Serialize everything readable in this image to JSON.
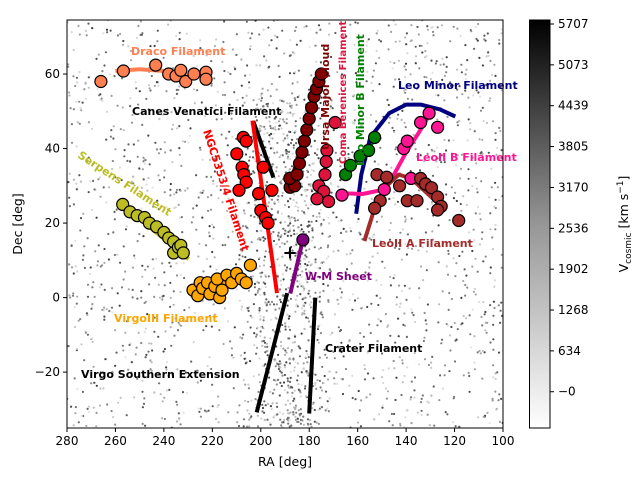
{
  "chart_data": {
    "type": "scatter",
    "xlabel": "RA [deg]",
    "ylabel": "Dec [deg]",
    "xlim": [
      280,
      100
    ],
    "ylim": [
      -35,
      74.5
    ],
    "xticks": [
      280,
      260,
      240,
      220,
      200,
      180,
      160,
      140,
      120,
      100
    ],
    "yticks": [
      -20,
      0,
      20,
      40,
      60
    ],
    "grid": false,
    "colorbar": {
      "label_main": "V",
      "label_sub": "cosmic",
      "label_unit": "[km s",
      "label_exp": "−1",
      "label_close": "]",
      "range": [
        -563,
        5769
      ],
      "ticks": [
        "5707",
        "5073",
        "4439",
        "3805",
        "3170",
        "2536",
        "1902",
        "1268",
        "634",
        "−0"
      ],
      "tick_values": [
        5707,
        5073,
        4439,
        3805,
        3170,
        2536,
        1902,
        1268,
        634,
        0
      ],
      "colormap": "Greys"
    },
    "marker": {
      "label": "+",
      "ra": 187.9,
      "dec": 12.0
    },
    "filaments": [
      {
        "name": "Draco Filament",
        "color": "#ff7f50",
        "line": [
          [
            260,
            60.8
          ],
          [
            250,
            61.3
          ],
          [
            240,
            60.8
          ],
          [
            233,
            59.8
          ],
          [
            228,
            59
          ]
        ],
        "members": [
          [
            266,
            58
          ],
          [
            256.7,
            60.8
          ],
          [
            243.4,
            62.4
          ],
          [
            238,
            60
          ],
          [
            235,
            59.5
          ],
          [
            233,
            61
          ],
          [
            231,
            58
          ],
          [
            227.6,
            60
          ],
          [
            222.6,
            60.5
          ],
          [
            222.6,
            58.6
          ]
        ]
      },
      {
        "name": "Canes Venatici Filament",
        "color": "#000000",
        "line": [
          [
            203.1,
            47.3
          ],
          [
            194.8,
            32.2
          ]
        ],
        "members": []
      },
      {
        "name": "Serpens Filament",
        "color": "#bcbd22",
        "line": [
          [
            257.3,
            25
          ],
          [
            229.8,
            10.3
          ]
        ],
        "members": [
          [
            257,
            25
          ],
          [
            254,
            23
          ],
          [
            251,
            22
          ],
          [
            248,
            21.5
          ],
          [
            246,
            20
          ],
          [
            243,
            19
          ],
          [
            240,
            17.5
          ],
          [
            238,
            16
          ],
          [
            236,
            15
          ],
          [
            236,
            12
          ],
          [
            234,
            13.5
          ],
          [
            233,
            14
          ],
          [
            232,
            12
          ]
        ]
      },
      {
        "name": "NGC5353/4 Filament",
        "color": "#ff0000",
        "line": [
          [
            203.4,
            47.5
          ],
          [
            193.3,
            1.2
          ]
        ],
        "members": [
          [
            207.2,
            43
          ],
          [
            206,
            42
          ],
          [
            209.9,
            38.6
          ],
          [
            207.7,
            35
          ],
          [
            199,
            35
          ],
          [
            207,
            33
          ],
          [
            206,
            31
          ],
          [
            209,
            28.8
          ],
          [
            200.9,
            27.9
          ],
          [
            195.4,
            28.8
          ],
          [
            200,
            23.4
          ],
          [
            198,
            21.5
          ],
          [
            197,
            20
          ]
        ]
      },
      {
        "name": "Ursa Major Cloud",
        "color": "#800000",
        "line": [
          [
            186.4,
            33.7
          ],
          [
            174.7,
            60
          ]
        ],
        "members": [
          [
            187.9,
            29.6
          ],
          [
            186,
            30
          ],
          [
            188,
            32
          ],
          [
            185,
            33
          ],
          [
            184,
            36
          ],
          [
            183,
            39
          ],
          [
            182,
            42
          ],
          [
            181,
            45
          ],
          [
            180,
            48
          ],
          [
            179,
            51
          ],
          [
            178,
            54
          ],
          [
            177,
            56
          ],
          [
            176,
            58
          ],
          [
            175,
            60
          ]
        ]
      },
      {
        "name": "Coma Berenices Filament",
        "color": "#dc143c",
        "line": [
          [
            175.4,
            29.6
          ],
          [
            171.3,
            40.4
          ]
        ],
        "members": [
          [
            169.3,
            47
          ],
          [
            172.7,
            39.5
          ],
          [
            173,
            36.5
          ],
          [
            173.5,
            33
          ],
          [
            176,
            30
          ],
          [
            174,
            28.5
          ],
          [
            176.8,
            26.5
          ],
          [
            172,
            25.8
          ]
        ]
      },
      {
        "name": "Leo Minor B Filament",
        "color": "#008000",
        "line": [
          [
            165,
            33.2
          ],
          [
            152,
            43
          ]
        ],
        "members": [
          [
            165,
            33
          ],
          [
            163,
            35.5
          ],
          [
            159,
            38
          ],
          [
            155.5,
            39.5
          ],
          [
            153,
            43
          ]
        ]
      },
      {
        "name": "Leo Minor Filament",
        "color": "#000080",
        "line": [
          [
            160.6,
            22.5
          ],
          [
            158.5,
            33
          ],
          [
            154.8,
            43
          ],
          [
            147,
            49.5
          ],
          [
            140,
            51.8
          ],
          [
            134,
            51.8
          ],
          [
            126,
            50.5
          ],
          [
            119.7,
            48.6
          ]
        ],
        "members": []
      },
      {
        "name": "LeoII B Filament",
        "color": "#ff1493",
        "line": [
          [
            166.7,
            28
          ],
          [
            158,
            27.8
          ],
          [
            150.7,
            28.8
          ],
          [
            145,
            33
          ],
          [
            140,
            39
          ],
          [
            135,
            44
          ],
          [
            130.7,
            48.6
          ]
        ],
        "members": [
          [
            166.5,
            27.5
          ],
          [
            149,
            29
          ],
          [
            138,
            32
          ],
          [
            141,
            40
          ],
          [
            139.5,
            42
          ],
          [
            134,
            47
          ],
          [
            130.5,
            49.5
          ],
          [
            127,
            45.7
          ]
        ]
      },
      {
        "name": "LeoII A Filament",
        "color": "#a52a2a",
        "line": [
          [
            157.2,
            15.2
          ],
          [
            153,
            24
          ],
          [
            148,
            30
          ],
          [
            143,
            33
          ],
          [
            138,
            32
          ],
          [
            133,
            29
          ],
          [
            128,
            26
          ]
        ],
        "members": [
          [
            152,
            33
          ],
          [
            148,
            32.3
          ],
          [
            142.7,
            30
          ],
          [
            134,
            32
          ],
          [
            132,
            30.5
          ],
          [
            129.5,
            29.5
          ],
          [
            150.7,
            26
          ],
          [
            153,
            24
          ],
          [
            139.5,
            26
          ],
          [
            135.5,
            26
          ],
          [
            127,
            27
          ],
          [
            125.5,
            24.5
          ],
          [
            127,
            23.5
          ],
          [
            118.3,
            20.7
          ]
        ]
      },
      {
        "name": "W-M Sheet",
        "color": "#800080",
        "line": [
          [
            187.8,
            1.1
          ],
          [
            182.6,
            15.5
          ]
        ],
        "members": [
          [
            182.6,
            15.5
          ]
        ]
      },
      {
        "name": "VirgoIII Filament",
        "color": "#ffa500",
        "line": [
          [
            227.7,
            2
          ],
          [
            207,
            5.5
          ]
        ],
        "members": [
          [
            228,
            2
          ],
          [
            226,
            0.5
          ],
          [
            225,
            4
          ],
          [
            224,
            2.5
          ],
          [
            222,
            4
          ],
          [
            221,
            1
          ],
          [
            219,
            3
          ],
          [
            218,
            5
          ],
          [
            217,
            0
          ],
          [
            216,
            2
          ],
          [
            214,
            6
          ],
          [
            212,
            4
          ],
          [
            210,
            6.5
          ],
          [
            208,
            5
          ],
          [
            206,
            4
          ],
          [
            204.3,
            8.7
          ]
        ]
      },
      {
        "name": "Crater Filament",
        "color": "#000000",
        "line": [
          [
            180,
            -31.1
          ],
          [
            177.5,
            0
          ]
        ],
        "members": []
      },
      {
        "name": "Virgo Southern Extension",
        "color": "#000000",
        "line": [
          [
            201.7,
            -30.8
          ],
          [
            189.1,
            1.2
          ]
        ],
        "members": []
      }
    ]
  }
}
